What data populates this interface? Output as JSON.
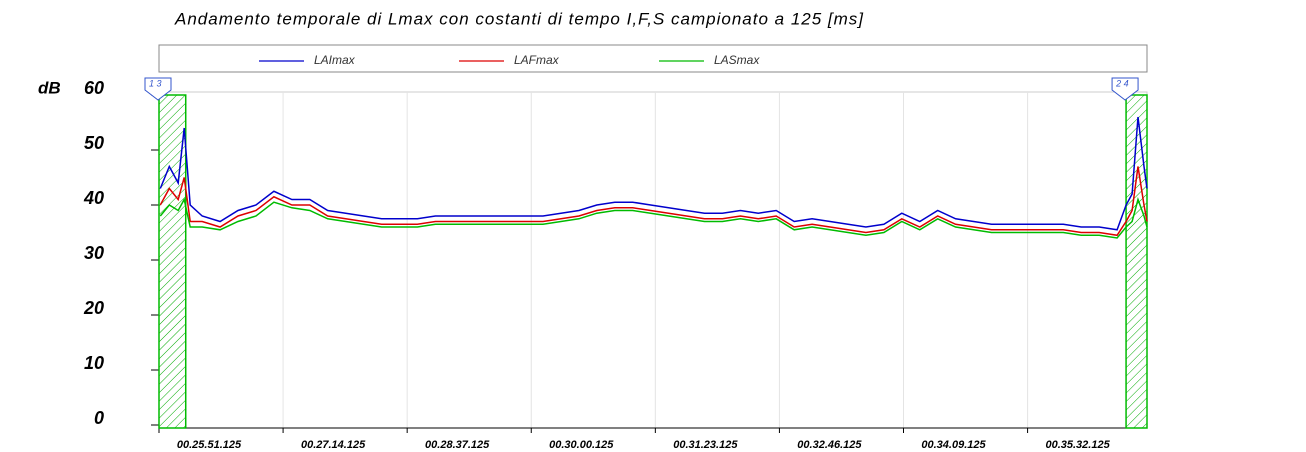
{
  "chart_data": {
    "type": "line",
    "title": "Andamento temporale di Lmax con costanti di tempo I,F,S campionato a 125 [ms]",
    "ylabel": "dB",
    "x": [
      1552,
      1558,
      1564,
      1568,
      1572,
      1580,
      1592,
      1604,
      1616,
      1628,
      1640,
      1652,
      1664,
      1676,
      1688,
      1700,
      1712,
      1724,
      1736,
      1748,
      1760,
      1772,
      1784,
      1796,
      1808,
      1820,
      1832,
      1844,
      1856,
      1868,
      1880,
      1892,
      1904,
      1916,
      1928,
      1940,
      1952,
      1964,
      1976,
      1988,
      2000,
      2012,
      2024,
      2036,
      2048,
      2060,
      2072,
      2084,
      2096,
      2108,
      2120,
      2132,
      2144,
      2156,
      2168,
      2180,
      2192,
      2198,
      2202,
      2206,
      2210,
      2212
    ],
    "series": [
      {
        "name": "LAImax",
        "color": "#0000cc",
        "values": [
          43,
          47,
          44,
          54,
          40,
          38,
          37,
          39,
          40,
          42.5,
          41,
          41,
          39,
          38.5,
          38,
          37.5,
          37.5,
          37.5,
          38,
          38,
          38,
          38,
          38,
          38,
          38,
          38.5,
          39,
          40,
          40.5,
          40.5,
          40,
          39.5,
          39,
          38.5,
          38.5,
          39,
          38.5,
          39,
          37,
          37.5,
          37,
          36.5,
          36,
          36.5,
          38.5,
          37,
          39,
          37.5,
          37,
          36.5,
          36.5,
          36.5,
          36.5,
          36.5,
          36,
          36,
          35.5,
          40,
          42,
          56,
          47,
          43
        ]
      },
      {
        "name": "LAFmax",
        "color": "#dd0000",
        "values": [
          40,
          43,
          41,
          45,
          37,
          37,
          36,
          38,
          39,
          41.5,
          40,
          40,
          38,
          37.5,
          37,
          36.5,
          36.5,
          36.5,
          37,
          37,
          37,
          37,
          37,
          37,
          37,
          37.5,
          38,
          39,
          39.5,
          39.5,
          39,
          38.5,
          38,
          37.5,
          37.5,
          38,
          37.5,
          38,
          36,
          36.5,
          36,
          35.5,
          35,
          35.5,
          37.5,
          36,
          38,
          36.5,
          36,
          35.5,
          35.5,
          35.5,
          35.5,
          35.5,
          35,
          35,
          34.5,
          37,
          39,
          47,
          40,
          37
        ]
      },
      {
        "name": "LASmax",
        "color": "#00bb00",
        "values": [
          38,
          40,
          39,
          41,
          36,
          36,
          35.5,
          37,
          38,
          40.5,
          39.5,
          39,
          37.5,
          37,
          36.5,
          36,
          36,
          36,
          36.5,
          36.5,
          36.5,
          36.5,
          36.5,
          36.5,
          36.5,
          37,
          37.5,
          38.5,
          39,
          39,
          38.5,
          38,
          37.5,
          37,
          37,
          37.5,
          37,
          37.5,
          35.5,
          36,
          35.5,
          35,
          34.5,
          35,
          37,
          35.5,
          37.5,
          36,
          35.5,
          35,
          35,
          35,
          35,
          35,
          34.5,
          34.5,
          34,
          36,
          37,
          41,
          38,
          36
        ]
      }
    ],
    "xlim": [
      1551.125,
      2212
    ],
    "xticks": [
      {
        "value": 1551.125,
        "label": "00.25.51.125"
      },
      {
        "value": 1634.125,
        "label": "00.27.14.125"
      },
      {
        "value": 1717.125,
        "label": "00.28.37.125"
      },
      {
        "value": 1800.125,
        "label": "00.30.00.125"
      },
      {
        "value": 1883.125,
        "label": "00.31.23.125"
      },
      {
        "value": 1966.125,
        "label": "00.32.46.125"
      },
      {
        "value": 2049.125,
        "label": "00.34.09.125"
      },
      {
        "value": 2132.125,
        "label": "00.35.32.125"
      }
    ],
    "ylim": [
      0,
      60
    ],
    "yticks": [
      0,
      10,
      20,
      30,
      40,
      50,
      60
    ],
    "grid": "x",
    "legend": "top",
    "regions": [
      {
        "x0": 1551.125,
        "x1": 1569,
        "color": "#00bb00"
      },
      {
        "x0": 2198,
        "x1": 2212,
        "color": "#00bb00"
      }
    ],
    "annotations": [
      {
        "text": "1 3",
        "x": 1551.125
      },
      {
        "text": "2 4",
        "x": 2198
      }
    ]
  }
}
